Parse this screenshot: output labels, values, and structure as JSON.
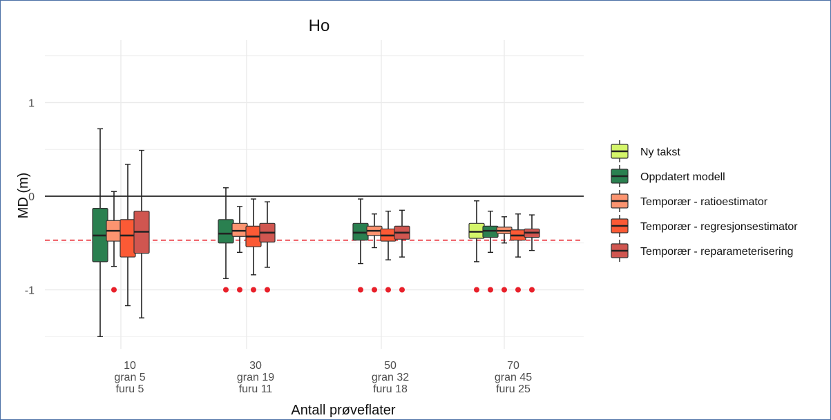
{
  "chart_data": {
    "type": "box",
    "title": "Ho",
    "xlabel": "Antall prøveflater",
    "ylabel": "MD (m)",
    "ylim": [
      -1.6,
      1.55
    ],
    "yticks": [
      1,
      0,
      -1
    ],
    "ytick_labels": [
      "1",
      "0",
      "-1"
    ],
    "reference_line_y": 0,
    "dashed_line_y": -0.47,
    "marker_y": -1,
    "legend_position": "right",
    "categories": [
      {
        "label": "10",
        "sub1": "gran 5",
        "sub2": "furu 5",
        "series_present": [
          1,
          2,
          3,
          4
        ],
        "markers": [
          2
        ]
      },
      {
        "label": "30",
        "sub1": "gran 19",
        "sub2": "furu 11",
        "series_present": [
          1,
          2,
          3,
          4
        ],
        "markers": [
          1,
          2,
          3,
          4
        ]
      },
      {
        "label": "50",
        "sub1": "gran 32",
        "sub2": "furu 18",
        "series_present": [
          1,
          2,
          3,
          4
        ],
        "markers": [
          1,
          2,
          3,
          4
        ]
      },
      {
        "label": "70",
        "sub1": "gran 45",
        "sub2": "furu 25",
        "series_present": [
          0,
          1,
          2,
          3,
          4
        ],
        "markers": [
          0,
          1,
          2,
          3,
          4
        ]
      }
    ],
    "series": [
      {
        "name": "Ny takst",
        "color": "#d4f56a",
        "boxes": [
          null,
          null,
          null,
          {
            "min": -0.7,
            "q1": -0.45,
            "median": -0.38,
            "q3": -0.29,
            "max": -0.05
          }
        ]
      },
      {
        "name": "Oppdatert modell",
        "color": "#2a8050",
        "boxes": [
          {
            "min": -1.5,
            "q1": -0.7,
            "median": -0.42,
            "q3": -0.13,
            "max": 0.72
          },
          {
            "min": -0.88,
            "q1": -0.5,
            "median": -0.4,
            "q3": -0.25,
            "max": 0.09
          },
          {
            "min": -0.72,
            "q1": -0.47,
            "median": -0.39,
            "q3": -0.29,
            "max": -0.03
          },
          {
            "min": -0.6,
            "q1": -0.44,
            "median": -0.37,
            "q3": -0.32,
            "max": -0.16
          }
        ]
      },
      {
        "name": "Temporær - ratioestimator",
        "color": "#fc9470",
        "boxes": [
          {
            "min": -0.75,
            "q1": -0.48,
            "median": -0.37,
            "q3": -0.26,
            "max": 0.05
          },
          {
            "min": -0.6,
            "q1": -0.43,
            "median": -0.37,
            "q3": -0.29,
            "max": -0.11
          },
          {
            "min": -0.55,
            "q1": -0.42,
            "median": -0.37,
            "q3": -0.32,
            "max": -0.19
          },
          {
            "min": -0.5,
            "q1": -0.4,
            "median": -0.37,
            "q3": -0.33,
            "max": -0.22
          }
        ]
      },
      {
        "name": "Temporær - regresjonsestimator",
        "color": "#fb5a35",
        "boxes": [
          {
            "min": -1.17,
            "q1": -0.65,
            "median": -0.42,
            "q3": -0.25,
            "max": 0.34
          },
          {
            "min": -0.84,
            "q1": -0.54,
            "median": -0.43,
            "q3": -0.32,
            "max": -0.03
          },
          {
            "min": -0.68,
            "q1": -0.48,
            "median": -0.42,
            "q3": -0.35,
            "max": -0.16
          },
          {
            "min": -0.65,
            "q1": -0.47,
            "median": -0.42,
            "q3": -0.36,
            "max": -0.19
          }
        ]
      },
      {
        "name": "Temporær - reparameterisering",
        "color": "#d05650",
        "boxes": [
          {
            "min": -1.3,
            "q1": -0.61,
            "median": -0.38,
            "q3": -0.16,
            "max": 0.49
          },
          {
            "min": -0.76,
            "q1": -0.49,
            "median": -0.39,
            "q3": -0.29,
            "max": -0.06
          },
          {
            "min": -0.65,
            "q1": -0.46,
            "median": -0.39,
            "q3": -0.32,
            "max": -0.15
          },
          {
            "min": -0.58,
            "q1": -0.44,
            "median": -0.39,
            "q3": -0.35,
            "max": -0.2
          }
        ]
      }
    ]
  }
}
